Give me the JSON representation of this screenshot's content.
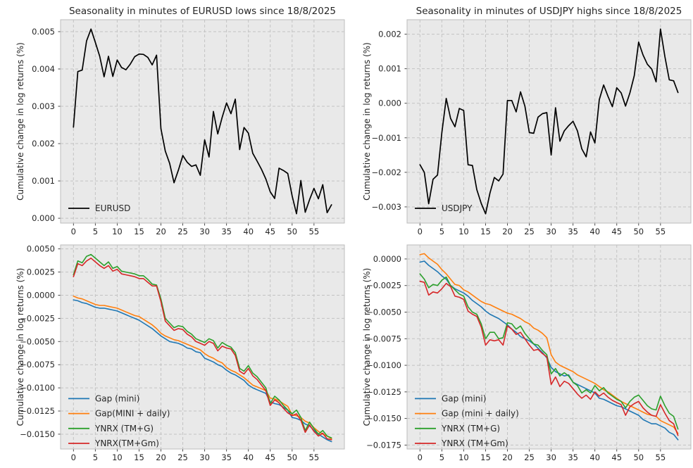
{
  "figure": {
    "background": "#ffffff",
    "plot_bg": "#e9e9e9",
    "grid_color": "#c3c3c3",
    "axis_edge": "#bdbdbd",
    "tick_color": "#333333",
    "text_color": "#262626"
  },
  "chart_data": [
    {
      "id": "eurusd-lows",
      "type": "line",
      "title": "Seasonality in minutes of EURUSD lows since 18/8/2025",
      "xlabel": "",
      "ylabel": "Cumulative change in log returns (%)",
      "grid": true,
      "legend_position": "lower left",
      "xlim": [
        -2.95,
        61.95
      ],
      "ylim": [
        -0.00013,
        0.00532
      ],
      "xticks": [
        0,
        5,
        10,
        15,
        20,
        25,
        30,
        35,
        40,
        45,
        50,
        55
      ],
      "yticks": [
        0.0,
        0.001,
        0.002,
        0.003,
        0.004,
        0.005
      ],
      "ytick_decimals": 3,
      "x": [
        0,
        1,
        2,
        3,
        4,
        5,
        6,
        7,
        8,
        9,
        10,
        11,
        12,
        13,
        14,
        15,
        16,
        17,
        18,
        19,
        20,
        21,
        22,
        23,
        24,
        25,
        26,
        27,
        28,
        29,
        30,
        31,
        32,
        33,
        34,
        35,
        36,
        37,
        38,
        39,
        40,
        41,
        42,
        43,
        44,
        45,
        46,
        47,
        48,
        49,
        50,
        51,
        52,
        53,
        54,
        55,
        56,
        57,
        58,
        59
      ],
      "series": [
        {
          "name": "EURUSD",
          "color": "#000000",
          "width": 1.7,
          "values": [
            0.00244,
            0.00393,
            0.00397,
            0.00475,
            0.00507,
            0.00471,
            0.00434,
            0.00379,
            0.00434,
            0.0038,
            0.00424,
            0.00404,
            0.00398,
            0.00413,
            0.00433,
            0.0044,
            0.00439,
            0.00431,
            0.00411,
            0.00437,
            0.0024,
            0.0018,
            0.00147,
            0.00095,
            0.00129,
            0.00168,
            0.0015,
            0.00139,
            0.00143,
            0.00115,
            0.0021,
            0.00164,
            0.00286,
            0.00226,
            0.0027,
            0.00309,
            0.0028,
            0.00319,
            0.00184,
            0.00243,
            0.00228,
            0.00174,
            0.00153,
            0.00131,
            0.00105,
            0.00071,
            0.00053,
            0.00134,
            0.00128,
            0.0012,
            0.0006,
            0.00012,
            0.00101,
            0.00016,
            0.0005,
            0.0008,
            0.00052,
            0.0009,
            0.00015,
            0.00036
          ]
        }
      ]
    },
    {
      "id": "usdjpy-highs",
      "type": "line",
      "title": "Seasonality in minutes of USDJPY highs since 18/8/2025",
      "xlabel": "",
      "ylabel": "Cumulative change in log returns (%)",
      "grid": true,
      "legend_position": "lower left",
      "xlim": [
        -2.95,
        61.95
      ],
      "ylim": [
        -0.00347,
        0.00242
      ],
      "xticks": [
        0,
        5,
        10,
        15,
        20,
        25,
        30,
        35,
        40,
        45,
        50,
        55
      ],
      "yticks": [
        -0.003,
        -0.002,
        -0.001,
        0.0,
        0.001,
        0.002
      ],
      "ytick_decimals": 3,
      "x": [
        0,
        1,
        2,
        3,
        4,
        5,
        6,
        7,
        8,
        9,
        10,
        11,
        12,
        13,
        14,
        15,
        16,
        17,
        18,
        19,
        20,
        21,
        22,
        23,
        24,
        25,
        26,
        27,
        28,
        29,
        30,
        31,
        32,
        33,
        34,
        35,
        36,
        37,
        38,
        39,
        40,
        41,
        42,
        43,
        44,
        45,
        46,
        47,
        48,
        49,
        50,
        51,
        52,
        53,
        54,
        55,
        56,
        57,
        58,
        59
      ],
      "series": [
        {
          "name": "USDJPY",
          "color": "#000000",
          "width": 1.7,
          "values": [
            -0.00178,
            -0.002,
            -0.00291,
            -0.0022,
            -0.00208,
            -0.00085,
            0.00014,
            -0.00044,
            -0.00068,
            -0.00015,
            -0.00021,
            -0.00178,
            -0.0018,
            -0.0025,
            -0.0029,
            -0.0032,
            -0.0026,
            -0.00215,
            -0.00225,
            -0.00205,
            8e-05,
            8e-05,
            -0.00025,
            0.00033,
            -8e-05,
            -0.00085,
            -0.00087,
            -0.0004,
            -0.0003,
            -0.00027,
            -0.0015,
            -0.00013,
            -0.0011,
            -0.0008,
            -0.00065,
            -0.00052,
            -0.0008,
            -0.00132,
            -0.00155,
            -0.00083,
            -0.00115,
            0.0001,
            0.00053,
            0.0002,
            -0.0001,
            0.00045,
            0.0003,
            -8e-05,
            0.0003,
            0.0008,
            0.00177,
            0.0014,
            0.00113,
            0.00099,
            0.00062,
            0.00215,
            0.00135,
            0.00068,
            0.00065,
            0.00031
          ]
        }
      ]
    },
    {
      "id": "eurusd-strategies",
      "type": "line",
      "title": "",
      "xlabel": "",
      "ylabel": "Cumulative change in log returns (%)",
      "grid": true,
      "legend_position": "lower left",
      "xlim": [
        -2.95,
        61.95
      ],
      "ylim": [
        -0.0166,
        0.00543
      ],
      "xticks": [
        0,
        5,
        10,
        15,
        20,
        25,
        30,
        35,
        40,
        45,
        50,
        55
      ],
      "yticks": [
        0.005,
        0.0025,
        0.0,
        -0.0025,
        -0.005,
        -0.0075,
        -0.01,
        -0.0125,
        -0.015
      ],
      "ytick_decimals": 4,
      "x": [
        0,
        1,
        2,
        3,
        4,
        5,
        6,
        7,
        8,
        9,
        10,
        11,
        12,
        13,
        14,
        15,
        16,
        17,
        18,
        19,
        20,
        21,
        22,
        23,
        24,
        25,
        26,
        27,
        28,
        29,
        30,
        31,
        32,
        33,
        34,
        35,
        36,
        37,
        38,
        39,
        40,
        41,
        42,
        43,
        44,
        45,
        46,
        47,
        48,
        49,
        50,
        51,
        52,
        53,
        54,
        55,
        56,
        57,
        58,
        59
      ],
      "series": [
        {
          "name": "Gap (mini)",
          "color": "#1f77b4",
          "width": 1.6,
          "values": [
            -0.0005,
            -0.0006,
            -0.0008,
            -0.0009,
            -0.0011,
            -0.0013,
            -0.0014,
            -0.0014,
            -0.0015,
            -0.0016,
            -0.0017,
            -0.0019,
            -0.0021,
            -0.0023,
            -0.0025,
            -0.0027,
            -0.003,
            -0.0033,
            -0.0036,
            -0.004,
            -0.0044,
            -0.0047,
            -0.005,
            -0.0051,
            -0.0052,
            -0.0054,
            -0.0057,
            -0.0058,
            -0.0061,
            -0.0062,
            -0.0068,
            -0.007,
            -0.0072,
            -0.0075,
            -0.0077,
            -0.0081,
            -0.0084,
            -0.0086,
            -0.0089,
            -0.0092,
            -0.0097,
            -0.01,
            -0.0102,
            -0.0104,
            -0.0106,
            -0.0115,
            -0.0117,
            -0.0118,
            -0.0121,
            -0.0124,
            -0.0132,
            -0.0133,
            -0.0135,
            -0.0139,
            -0.0141,
            -0.0146,
            -0.015,
            -0.0153,
            -0.0156,
            -0.0158
          ]
        },
        {
          "name": "Gap(MINI + daily)",
          "color": "#ff7f0e",
          "width": 1.6,
          "values": [
            -0.0001,
            -0.0003,
            -0.0004,
            -0.0006,
            -0.0008,
            -0.001,
            -0.0011,
            -0.0011,
            -0.0012,
            -0.0013,
            -0.0014,
            -0.0016,
            -0.0018,
            -0.002,
            -0.0022,
            -0.0023,
            -0.0026,
            -0.0029,
            -0.0032,
            -0.0036,
            -0.0041,
            -0.0044,
            -0.0046,
            -0.0048,
            -0.0049,
            -0.0051,
            -0.0053,
            -0.0055,
            -0.0057,
            -0.0059,
            -0.0063,
            -0.0066,
            -0.0068,
            -0.0071,
            -0.0073,
            -0.0078,
            -0.0081,
            -0.0083,
            -0.0086,
            -0.0089,
            -0.0093,
            -0.0097,
            -0.0099,
            -0.0101,
            -0.0103,
            -0.0111,
            -0.0112,
            -0.0114,
            -0.0117,
            -0.012,
            -0.0129,
            -0.013,
            -0.0132,
            -0.0136,
            -0.0138,
            -0.0143,
            -0.0147,
            -0.015,
            -0.0152,
            -0.0155
          ]
        },
        {
          "name": "YNRX (TM+G)",
          "color": "#2ca02c",
          "width": 1.6,
          "values": [
            0.0022,
            0.0037,
            0.0035,
            0.0042,
            0.0044,
            0.004,
            0.0036,
            0.0032,
            0.0036,
            0.0029,
            0.0031,
            0.0026,
            0.0025,
            0.0024,
            0.0023,
            0.0021,
            0.0021,
            0.0017,
            0.0012,
            0.0011,
            -0.0004,
            -0.0025,
            -0.003,
            -0.0035,
            -0.0033,
            -0.0034,
            -0.0039,
            -0.0042,
            -0.0047,
            -0.0049,
            -0.0051,
            -0.0047,
            -0.0049,
            -0.0057,
            -0.0051,
            -0.0054,
            -0.0056,
            -0.0062,
            -0.0079,
            -0.0082,
            -0.0076,
            -0.0084,
            -0.0088,
            -0.0094,
            -0.01,
            -0.0117,
            -0.0109,
            -0.0113,
            -0.0119,
            -0.0124,
            -0.0128,
            -0.0124,
            -0.0132,
            -0.0146,
            -0.0137,
            -0.0144,
            -0.015,
            -0.0146,
            -0.0152,
            -0.0154
          ]
        },
        {
          "name": "YNRX(TM+Gm)",
          "color": "#d62728",
          "width": 1.6,
          "values": [
            0.002,
            0.0034,
            0.0032,
            0.0037,
            0.004,
            0.0036,
            0.0032,
            0.0029,
            0.0032,
            0.0026,
            0.0028,
            0.0023,
            0.0022,
            0.0021,
            0.002,
            0.0018,
            0.0018,
            0.0014,
            0.001,
            0.001,
            -0.0007,
            -0.0028,
            -0.0033,
            -0.0038,
            -0.0036,
            -0.0037,
            -0.0042,
            -0.0045,
            -0.005,
            -0.0052,
            -0.0054,
            -0.005,
            -0.0052,
            -0.006,
            -0.0055,
            -0.0057,
            -0.0058,
            -0.0065,
            -0.0082,
            -0.0085,
            -0.0079,
            -0.0087,
            -0.0091,
            -0.0097,
            -0.0103,
            -0.0119,
            -0.0113,
            -0.0116,
            -0.0122,
            -0.0127,
            -0.013,
            -0.0128,
            -0.0135,
            -0.0148,
            -0.014,
            -0.0147,
            -0.0152,
            -0.0149,
            -0.0155,
            -0.0156
          ]
        }
      ]
    },
    {
      "id": "usdjpy-strategies",
      "type": "line",
      "title": "",
      "xlabel": "",
      "ylabel": "Cumulative change in log returns (%)",
      "grid": true,
      "legend_position": "lower left",
      "xlim": [
        -2.95,
        61.95
      ],
      "ylim": [
        -0.01787,
        0.00132
      ],
      "xticks": [
        0,
        5,
        10,
        15,
        20,
        25,
        30,
        35,
        40,
        45,
        50,
        55
      ],
      "yticks": [
        0.0,
        -0.0025,
        -0.005,
        -0.0075,
        -0.01,
        -0.0125,
        -0.015,
        -0.0175
      ],
      "ytick_decimals": 4,
      "x": [
        0,
        1,
        2,
        3,
        4,
        5,
        6,
        7,
        8,
        9,
        10,
        11,
        12,
        13,
        14,
        15,
        16,
        17,
        18,
        19,
        20,
        21,
        22,
        23,
        24,
        25,
        26,
        27,
        28,
        29,
        30,
        31,
        32,
        33,
        34,
        35,
        36,
        37,
        38,
        39,
        40,
        41,
        42,
        43,
        44,
        45,
        46,
        47,
        48,
        49,
        50,
        51,
        52,
        53,
        54,
        55,
        56,
        57,
        58,
        59
      ],
      "series": [
        {
          "name": "Gap (mini)",
          "color": "#1f77b4",
          "width": 1.6,
          "values": [
            -0.0003,
            -0.0002,
            -0.0006,
            -0.0009,
            -0.0012,
            -0.0016,
            -0.0019,
            -0.0025,
            -0.0028,
            -0.003,
            -0.0032,
            -0.0035,
            -0.0039,
            -0.0042,
            -0.0045,
            -0.0049,
            -0.0052,
            -0.0054,
            -0.0056,
            -0.0059,
            -0.0062,
            -0.0066,
            -0.0069,
            -0.0073,
            -0.0075,
            -0.0077,
            -0.008,
            -0.0084,
            -0.0088,
            -0.0093,
            -0.0102,
            -0.0106,
            -0.0108,
            -0.011,
            -0.0109,
            -0.0116,
            -0.0118,
            -0.012,
            -0.0122,
            -0.0124,
            -0.0126,
            -0.0131,
            -0.0132,
            -0.0134,
            -0.0136,
            -0.0138,
            -0.0139,
            -0.0141,
            -0.0143,
            -0.0145,
            -0.0147,
            -0.0151,
            -0.0153,
            -0.0155,
            -0.0155,
            -0.0157,
            -0.0159,
            -0.0163,
            -0.0165,
            -0.017
          ]
        },
        {
          "name": "Gap (mini + daily)",
          "color": "#ff7f0e",
          "width": 1.6,
          "values": [
            0.0004,
            0.0005,
            0.0001,
            -0.0002,
            -0.0005,
            -0.001,
            -0.0014,
            -0.0019,
            -0.0024,
            -0.0025,
            -0.0029,
            -0.0031,
            -0.0034,
            -0.0037,
            -0.004,
            -0.0042,
            -0.0043,
            -0.0045,
            -0.0047,
            -0.0049,
            -0.0051,
            -0.0052,
            -0.0054,
            -0.0056,
            -0.0059,
            -0.0061,
            -0.0065,
            -0.0067,
            -0.007,
            -0.0074,
            -0.009,
            -0.0097,
            -0.01,
            -0.0102,
            -0.0104,
            -0.0106,
            -0.0109,
            -0.0111,
            -0.0113,
            -0.0115,
            -0.0117,
            -0.012,
            -0.0123,
            -0.0125,
            -0.0128,
            -0.0131,
            -0.0134,
            -0.0136,
            -0.0138,
            -0.014,
            -0.0142,
            -0.0144,
            -0.0146,
            -0.0147,
            -0.0148,
            -0.0152,
            -0.0154,
            -0.0156,
            -0.0158,
            -0.0164
          ]
        },
        {
          "name": "YNRX (TM+G)",
          "color": "#2ca02c",
          "width": 1.6,
          "values": [
            -0.0014,
            -0.0019,
            -0.0027,
            -0.0024,
            -0.0025,
            -0.002,
            -0.0017,
            -0.0025,
            -0.0029,
            -0.0033,
            -0.0035,
            -0.0045,
            -0.005,
            -0.0052,
            -0.0061,
            -0.0075,
            -0.0069,
            -0.0069,
            -0.0075,
            -0.0074,
            -0.006,
            -0.0061,
            -0.0066,
            -0.0063,
            -0.007,
            -0.0075,
            -0.008,
            -0.0081,
            -0.0086,
            -0.009,
            -0.0108,
            -0.0103,
            -0.011,
            -0.0107,
            -0.011,
            -0.0116,
            -0.0119,
            -0.0126,
            -0.0123,
            -0.0126,
            -0.0119,
            -0.0124,
            -0.0121,
            -0.0126,
            -0.0129,
            -0.0132,
            -0.0134,
            -0.014,
            -0.0134,
            -0.013,
            -0.0128,
            -0.0133,
            -0.0138,
            -0.0141,
            -0.0142,
            -0.0129,
            -0.0138,
            -0.0145,
            -0.0148,
            -0.016
          ]
        },
        {
          "name": "YNRX (TM+Gm)",
          "color": "#d62728",
          "width": 1.6,
          "values": [
            -0.0021,
            -0.0022,
            -0.0034,
            -0.0031,
            -0.0032,
            -0.0028,
            -0.0023,
            -0.0026,
            -0.0035,
            -0.0036,
            -0.0038,
            -0.0049,
            -0.0052,
            -0.0054,
            -0.0064,
            -0.0081,
            -0.0076,
            -0.0077,
            -0.0076,
            -0.0081,
            -0.0063,
            -0.0066,
            -0.0071,
            -0.0069,
            -0.0075,
            -0.0081,
            -0.0086,
            -0.0085,
            -0.0089,
            -0.0092,
            -0.0118,
            -0.0111,
            -0.012,
            -0.0115,
            -0.0117,
            -0.0122,
            -0.0127,
            -0.0131,
            -0.0128,
            -0.0132,
            -0.0125,
            -0.0129,
            -0.0126,
            -0.013,
            -0.0133,
            -0.0135,
            -0.0137,
            -0.0147,
            -0.0139,
            -0.0136,
            -0.0134,
            -0.014,
            -0.0144,
            -0.0147,
            -0.0148,
            -0.0137,
            -0.0145,
            -0.0152,
            -0.0155,
            -0.0166
          ]
        }
      ]
    }
  ]
}
